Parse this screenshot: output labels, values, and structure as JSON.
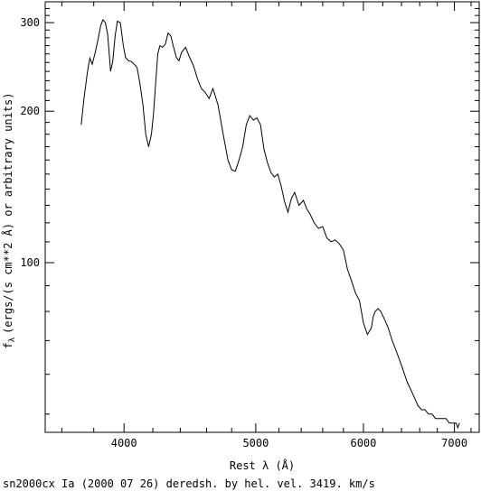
{
  "chart_data": {
    "type": "line",
    "title": "",
    "xlabel": "Rest λ (Å)",
    "ylabel": "f_λ (ergs/(s cm**2 Å) or arbitrary units)",
    "ylabel_base": "f",
    "ylabel_sub": "λ",
    "ylabel_rest": "(ergs/(s cm**2 Å) or arbitrary units)",
    "caption": "sn2000cx Ia (2000 07 26) deredsh. by hel. vel.  3419. km/s",
    "x_scale": "log",
    "y_scale": "log",
    "xlim": [
      3500,
      7300
    ],
    "ylim": [
      46,
      330
    ],
    "x_ticks": [
      4000,
      5000,
      6000,
      7000
    ],
    "x_tick_labels": [
      "4000",
      "5000",
      "6000",
      "7000"
    ],
    "y_ticks": [
      100,
      200,
      300
    ],
    "y_tick_labels": [
      "100",
      "200",
      "300"
    ],
    "grid": false,
    "legend": "none",
    "series": [
      {
        "x": [
          3720,
          3740,
          3760,
          3775,
          3790,
          3810,
          3830,
          3845,
          3860,
          3875,
          3890,
          3900,
          3910,
          3925,
          3940,
          3955,
          3975,
          3995,
          4010,
          4030,
          4050,
          4070,
          4090,
          4110,
          4130,
          4150,
          4170,
          4190,
          4205,
          4220,
          4235,
          4250,
          4270,
          4290,
          4310,
          4330,
          4350,
          4370,
          4390,
          4410,
          4440,
          4470,
          4500,
          4530,
          4560,
          4590,
          4620,
          4650,
          4690,
          4730,
          4770,
          4800,
          4830,
          4860,
          4890,
          4920,
          4950,
          4980,
          5010,
          5040,
          5070,
          5100,
          5130,
          5160,
          5190,
          5220,
          5250,
          5280,
          5310,
          5340,
          5380,
          5420,
          5450,
          5480,
          5520,
          5560,
          5600,
          5640,
          5680,
          5720,
          5760,
          5800,
          5840,
          5880,
          5920,
          5960,
          6000,
          6040,
          6080,
          6100,
          6120,
          6150,
          6180,
          6220,
          6260,
          6300,
          6340,
          6380,
          6420,
          6460,
          6500,
          6540,
          6580,
          6620,
          6660,
          6700,
          6740,
          6780,
          6820,
          6860,
          6900,
          6940,
          6980,
          7020,
          7040,
          7060
        ],
        "y": [
          188,
          215,
          240,
          255,
          248,
          262,
          280,
          296,
          304,
          300,
          285,
          262,
          240,
          252,
          282,
          302,
          300,
          270,
          256,
          252,
          251,
          248,
          244,
          226,
          206,
          180,
          170,
          180,
          198,
          228,
          260,
          270,
          268,
          272,
          286,
          282,
          268,
          256,
          252,
          262,
          268,
          256,
          246,
          232,
          222,
          218,
          212,
          222,
          206,
          181,
          160,
          153,
          152,
          160,
          170,
          188,
          196,
          192,
          194,
          188,
          168,
          158,
          151,
          148,
          150,
          142,
          132,
          126,
          134,
          138,
          130,
          133,
          128,
          125,
          120,
          117,
          118,
          112,
          110,
          111,
          109,
          106,
          97,
          92,
          87,
          84,
          76,
          72,
          74,
          78,
          80,
          81,
          80,
          77,
          74,
          70,
          67,
          64,
          61,
          58,
          56,
          54,
          52,
          51,
          51,
          50,
          50,
          49,
          49,
          49,
          49,
          48,
          48,
          48,
          47,
          48
        ]
      }
    ]
  }
}
